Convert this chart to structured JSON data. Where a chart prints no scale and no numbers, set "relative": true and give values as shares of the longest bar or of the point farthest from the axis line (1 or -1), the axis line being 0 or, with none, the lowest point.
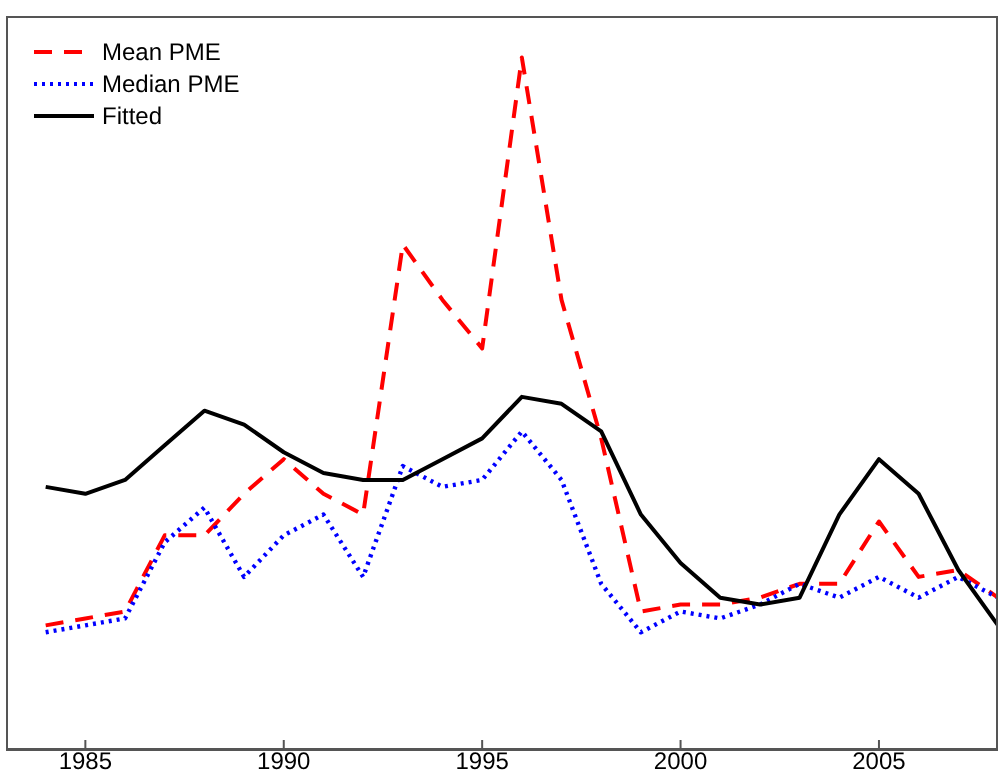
{
  "chart_data": {
    "type": "line",
    "relative": true,
    "x": [
      1984,
      1985,
      1986,
      1987,
      1988,
      1989,
      1990,
      1991,
      1992,
      1993,
      1994,
      1995,
      1996,
      1997,
      1998,
      1999,
      2000,
      2001,
      2002,
      2003,
      2004,
      2005,
      2006,
      2007,
      2008
    ],
    "xlim": [
      1983,
      2008
    ],
    "xticks": [
      1985,
      1990,
      1995,
      2000,
      2005
    ],
    "legend": "top left",
    "marker": "none",
    "series": [
      {
        "name": "Mean PME",
        "color": "#ff0000",
        "line_style": "dashed",
        "values": [
          0.18,
          0.19,
          0.2,
          0.31,
          0.31,
          0.37,
          0.42,
          0.37,
          0.34,
          0.73,
          0.65,
          0.58,
          1,
          0.65,
          0.45,
          0.2,
          0.21,
          0.21,
          0.22,
          0.24,
          0.24,
          0.33,
          0.25,
          0.26,
          0.22
        ]
      },
      {
        "name": "Median PME",
        "color": "#0000ff",
        "line_style": "dotted",
        "values": [
          0.17,
          0.18,
          0.19,
          0.3,
          0.35,
          0.25,
          0.31,
          0.34,
          0.25,
          0.41,
          0.38,
          0.39,
          0.46,
          0.39,
          0.24,
          0.17,
          0.2,
          0.19,
          0.21,
          0.24,
          0.22,
          0.25,
          0.22,
          0.25,
          0.22
        ]
      },
      {
        "name": "Fitted",
        "color": "#000000",
        "line_style": "solid",
        "values": [
          0.38,
          0.37,
          0.39,
          0.44,
          0.49,
          0.47,
          0.43,
          0.4,
          0.39,
          0.39,
          0.42,
          0.45,
          0.51,
          0.5,
          0.46,
          0.34,
          0.27,
          0.22,
          0.21,
          0.22,
          0.34,
          0.42,
          0.37,
          0.26,
          0.18
        ]
      }
    ]
  }
}
